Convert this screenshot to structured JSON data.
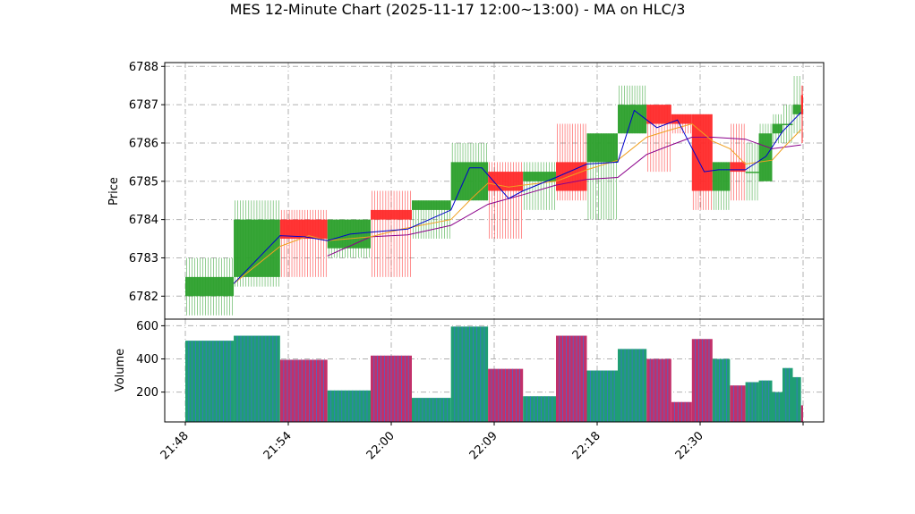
{
  "chart_data": {
    "type": "candlestick",
    "title": "MES 12-Minute Chart (2025-11-17 12:00~13:00) - MA on HLC/3",
    "price_panel": {
      "ylabel": "Price",
      "ylim": [
        6781.4,
        6788.1
      ],
      "yticks": [
        6782,
        6783,
        6784,
        6785,
        6786,
        6787,
        6788
      ],
      "grid": true
    },
    "volume_panel": {
      "ylabel": "Volume",
      "ylim": [
        20,
        640
      ],
      "yticks": [
        200,
        400,
        600
      ],
      "grid": true
    },
    "x_range": [
      -1,
      31
    ],
    "xticks": [
      {
        "x": 0,
        "label": "21:48"
      },
      {
        "x": 5,
        "label": "21:54"
      },
      {
        "x": 10,
        "label": "22:00"
      },
      {
        "x": 15,
        "label": "22:09"
      },
      {
        "x": 20,
        "label": "22:18"
      },
      {
        "x": 25,
        "label": "22:30"
      },
      {
        "x": 30,
        "label": ""
      }
    ],
    "colors": {
      "up": "#2ca02c",
      "down": "#ff2a2a",
      "volume_up": "#1f9e74",
      "volume_down": "#c2306a",
      "volume_edge": "#3d6fd6",
      "ma_fast": "#0000cc",
      "ma_mid": "#f0a020",
      "ma_slow": "#8b008b",
      "grid": "#b0b0b0"
    },
    "candles": [
      {
        "start": 0,
        "end": 2.35,
        "open": 6782.0,
        "close": 6782.5,
        "high": 6783.0,
        "low": 6781.5,
        "volume": 510
      },
      {
        "start": 2.35,
        "end": 4.6,
        "open": 6782.5,
        "close": 6784.0,
        "high": 6784.5,
        "low": 6782.25,
        "volume": 540
      },
      {
        "start": 4.6,
        "end": 6.9,
        "open": 6784.0,
        "close": 6783.5,
        "high": 6784.25,
        "low": 6782.5,
        "volume": 395
      },
      {
        "start": 6.9,
        "end": 9.0,
        "open": 6783.25,
        "close": 6784.0,
        "high": 6784.0,
        "low": 6783.0,
        "volume": 210
      },
      {
        "start": 9.0,
        "end": 11.0,
        "open": 6784.25,
        "close": 6784.0,
        "high": 6784.75,
        "low": 6782.5,
        "volume": 420
      },
      {
        "start": 11.0,
        "end": 12.9,
        "open": 6784.25,
        "close": 6784.5,
        "high": 6784.5,
        "low": 6783.5,
        "volume": 165
      },
      {
        "start": 12.9,
        "end": 14.7,
        "open": 6784.5,
        "close": 6785.5,
        "high": 6786.0,
        "low": 6784.5,
        "volume": 595
      },
      {
        "start": 14.7,
        "end": 16.4,
        "open": 6785.25,
        "close": 6784.75,
        "high": 6785.5,
        "low": 6783.5,
        "volume": 340
      },
      {
        "start": 16.4,
        "end": 18.0,
        "open": 6785.0,
        "close": 6785.25,
        "high": 6785.5,
        "low": 6784.25,
        "volume": 175
      },
      {
        "start": 18.0,
        "end": 19.5,
        "open": 6785.5,
        "close": 6784.75,
        "high": 6786.5,
        "low": 6784.5,
        "volume": 540
      },
      {
        "start": 19.5,
        "end": 21.0,
        "open": 6785.5,
        "close": 6786.25,
        "high": 6786.25,
        "low": 6784.0,
        "volume": 330
      },
      {
        "start": 21.0,
        "end": 22.4,
        "open": 6786.25,
        "close": 6787.0,
        "high": 6787.5,
        "low": 6786.25,
        "volume": 460
      },
      {
        "start": 22.4,
        "end": 23.6,
        "open": 6787.0,
        "close": 6786.5,
        "high": 6787.0,
        "low": 6785.25,
        "volume": 400
      },
      {
        "start": 23.6,
        "end": 24.6,
        "open": 6786.75,
        "close": 6786.5,
        "high": 6786.75,
        "low": 6786.25,
        "volume": 140
      },
      {
        "start": 24.6,
        "end": 25.6,
        "open": 6786.75,
        "close": 6784.75,
        "high": 6786.75,
        "low": 6784.25,
        "volume": 520
      },
      {
        "start": 25.6,
        "end": 26.45,
        "open": 6784.75,
        "close": 6785.5,
        "high": 6785.5,
        "low": 6784.25,
        "volume": 400
      },
      {
        "start": 26.45,
        "end": 27.2,
        "open": 6785.5,
        "close": 6785.25,
        "high": 6786.5,
        "low": 6784.5,
        "volume": 240
      },
      {
        "start": 27.2,
        "end": 27.85,
        "open": 6785.25,
        "close": 6785.25,
        "high": 6786.0,
        "low": 6784.5,
        "volume": 260
      },
      {
        "start": 27.85,
        "end": 28.5,
        "open": 6785.0,
        "close": 6786.25,
        "high": 6786.5,
        "low": 6785.0,
        "volume": 270
      },
      {
        "start": 28.5,
        "end": 29.0,
        "open": 6786.25,
        "close": 6786.5,
        "high": 6786.75,
        "low": 6786.0,
        "volume": 200
      },
      {
        "start": 29.0,
        "end": 29.5,
        "open": 6786.5,
        "close": 6786.5,
        "high": 6787.0,
        "low": 6786.0,
        "volume": 345
      },
      {
        "start": 29.5,
        "end": 29.9,
        "open": 6786.75,
        "close": 6787.0,
        "high": 6787.75,
        "low": 6786.25,
        "volume": 290
      },
      {
        "start": 29.9,
        "end": 30.0,
        "open": 6787.25,
        "close": 6786.75,
        "high": 6787.5,
        "low": 6786.0,
        "volume": 120
      }
    ],
    "ma_fast": [
      [
        2.35,
        6782.33
      ],
      [
        2.35,
        6782.33
      ],
      [
        4.6,
        6783.58
      ],
      [
        5.8,
        6783.55
      ],
      [
        6.9,
        6783.45
      ],
      [
        8.0,
        6783.62
      ],
      [
        9.0,
        6783.67
      ],
      [
        10.8,
        6783.75
      ],
      [
        12.9,
        6784.25
      ],
      [
        13.8,
        6785.35
      ],
      [
        14.4,
        6785.35
      ],
      [
        15.7,
        6784.55
      ],
      [
        16.4,
        6784.75
      ],
      [
        18.0,
        6785.1
      ],
      [
        19.5,
        6785.45
      ],
      [
        21.0,
        6785.5
      ],
      [
        21.8,
        6786.85
      ],
      [
        22.9,
        6786.4
      ],
      [
        23.9,
        6786.6
      ],
      [
        25.2,
        6785.25
      ],
      [
        25.9,
        6785.3
      ],
      [
        27.2,
        6785.3
      ],
      [
        28.2,
        6785.65
      ],
      [
        29.0,
        6786.3
      ],
      [
        29.9,
        6786.8
      ]
    ],
    "ma_mid": [
      [
        2.35,
        6782.33
      ],
      [
        4.6,
        6783.3
      ],
      [
        6.0,
        6783.58
      ],
      [
        6.9,
        6783.45
      ],
      [
        9.0,
        6783.55
      ],
      [
        10.5,
        6783.75
      ],
      [
        12.9,
        6784.0
      ],
      [
        13.9,
        6784.55
      ],
      [
        14.7,
        6784.95
      ],
      [
        15.7,
        6784.85
      ],
      [
        16.4,
        6784.9
      ],
      [
        18.0,
        6785.0
      ],
      [
        19.5,
        6785.3
      ],
      [
        21.0,
        6785.55
      ],
      [
        22.4,
        6786.15
      ],
      [
        23.6,
        6786.35
      ],
      [
        24.6,
        6786.5
      ],
      [
        25.6,
        6786.05
      ],
      [
        26.45,
        6785.85
      ],
      [
        27.2,
        6785.45
      ],
      [
        28.5,
        6785.55
      ],
      [
        29.0,
        6785.85
      ],
      [
        29.9,
        6786.35
      ]
    ],
    "ma_slow": [
      [
        6.9,
        6783.05
      ],
      [
        9.0,
        6783.55
      ],
      [
        10.8,
        6783.6
      ],
      [
        12.9,
        6783.85
      ],
      [
        14.7,
        6784.4
      ],
      [
        16.4,
        6784.65
      ],
      [
        18.0,
        6784.9
      ],
      [
        19.5,
        6785.05
      ],
      [
        21.0,
        6785.1
      ],
      [
        22.4,
        6785.7
      ],
      [
        23.6,
        6785.95
      ],
      [
        24.6,
        6786.15
      ],
      [
        25.6,
        6786.15
      ],
      [
        27.2,
        6786.1
      ],
      [
        28.5,
        6785.85
      ],
      [
        29.9,
        6785.95
      ]
    ]
  }
}
